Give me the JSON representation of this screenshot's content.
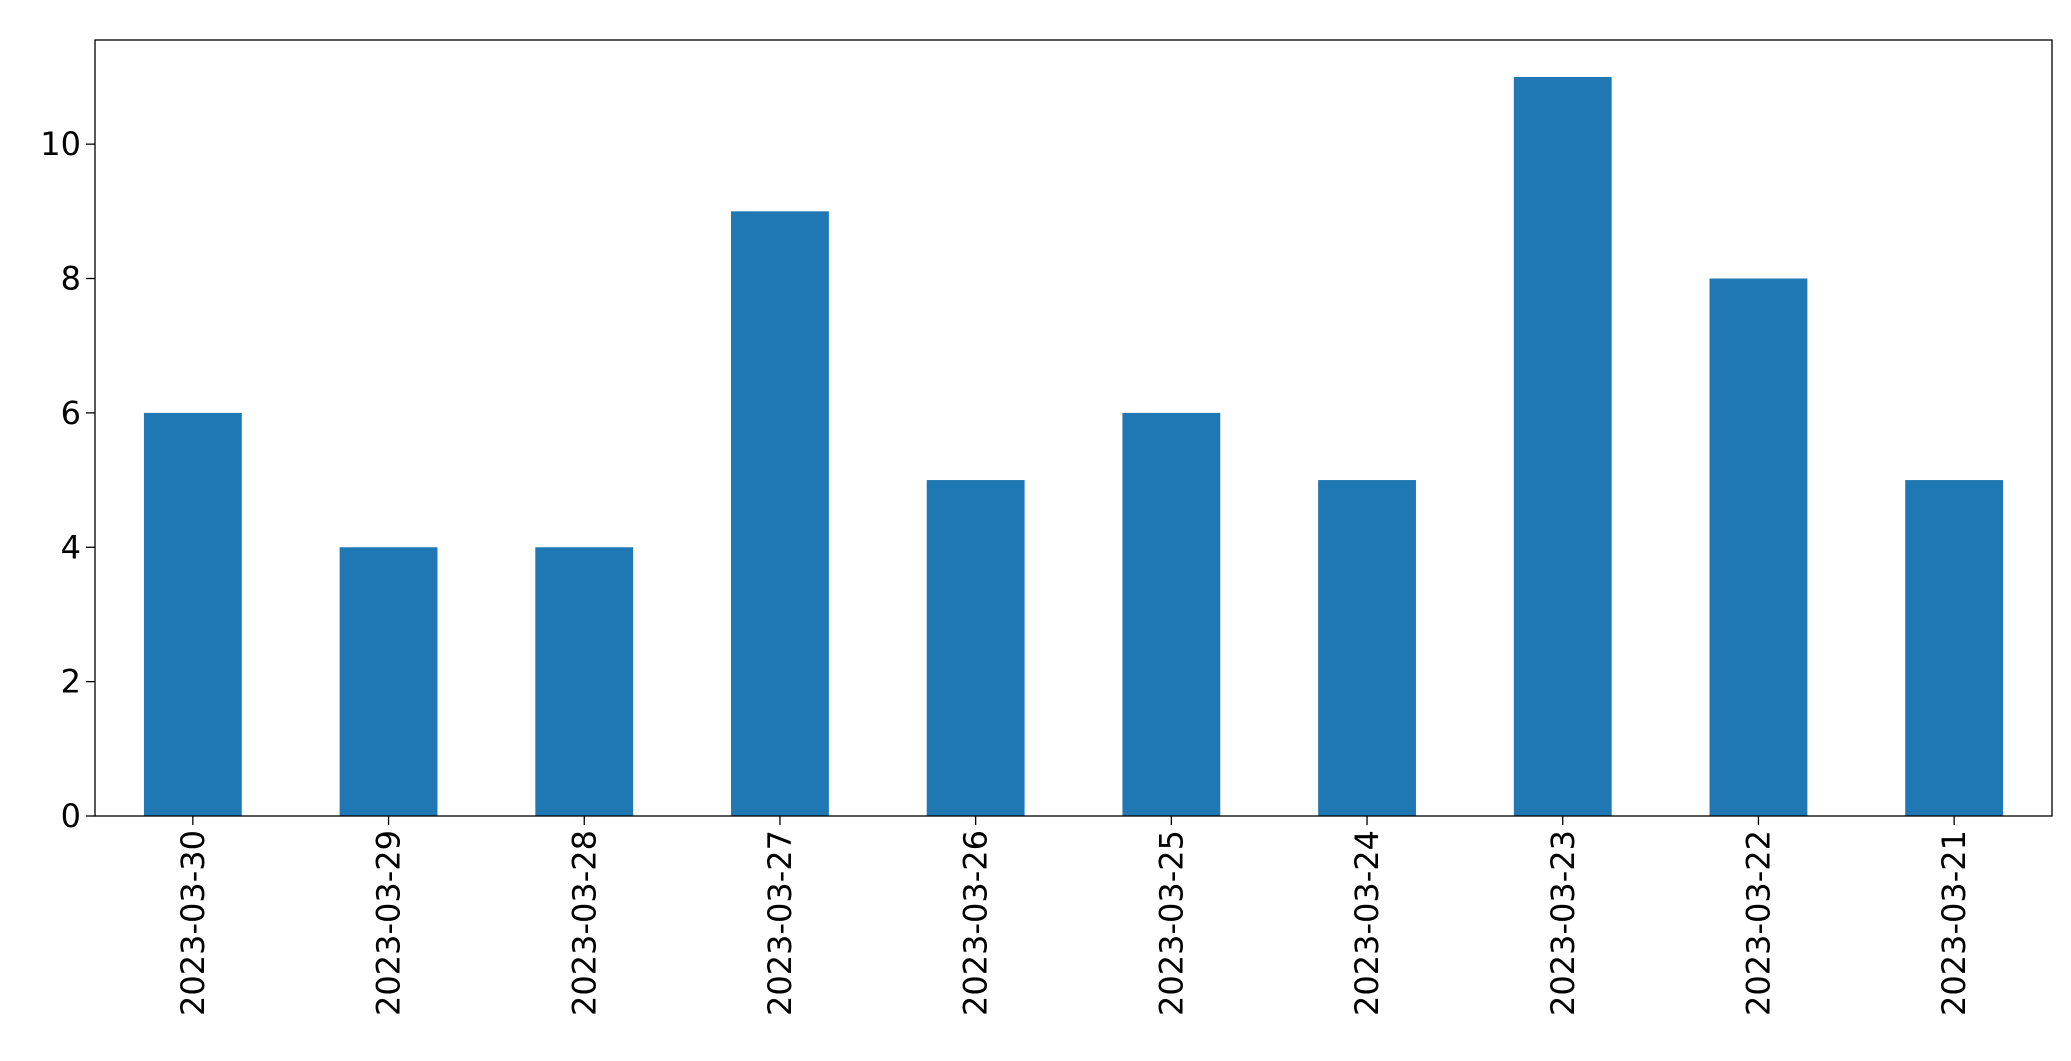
{
  "chart_data": {
    "type": "bar",
    "categories": [
      "2023-03-30",
      "2023-03-29",
      "2023-03-28",
      "2023-03-27",
      "2023-03-26",
      "2023-03-25",
      "2023-03-24",
      "2023-03-23",
      "2023-03-22",
      "2023-03-21"
    ],
    "values": [
      6,
      4,
      4,
      9,
      5,
      6,
      5,
      11,
      8,
      5
    ],
    "color": "#1f77b4",
    "ylim": [
      0,
      11.55
    ],
    "yticks": [
      0,
      2,
      4,
      6,
      8,
      10
    ],
    "grid": false
  }
}
